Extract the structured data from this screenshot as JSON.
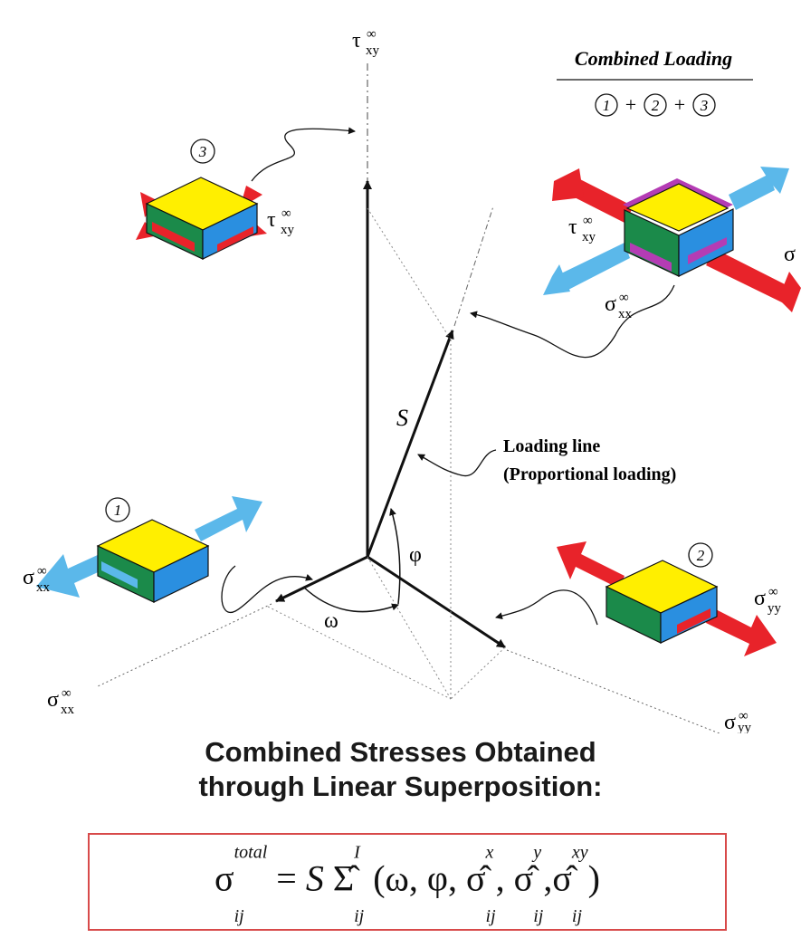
{
  "combined_title": "Combined Loading",
  "combined_sum": {
    "n1": "1",
    "plus1": "+",
    "n2": "2",
    "plus2": "+",
    "n3": "3"
  },
  "axis_labels": {
    "tau_top": "τ",
    "sigma_xx_bottom": "σ",
    "sigma_yy_bottom": "σ",
    "sub_xy": "xy",
    "sub_xx": "xx",
    "sub_yy": "yy",
    "sup_inf": "∞"
  },
  "angles": {
    "omega": "ω",
    "phi": "φ"
  },
  "vector_label": "S",
  "loading_line": {
    "line1": "Loading line",
    "line2": "(Proportional loading)"
  },
  "cubes": {
    "c1_number": "1",
    "c2_number": "2",
    "c3_number": "3",
    "c1_label": "σ",
    "c2_label": "σ",
    "c3_label": "τ",
    "combined_tau": "τ",
    "combined_sigma_xx": "σ",
    "combined_sigma_edge": "σ"
  },
  "heading": {
    "line1": "Combined Stresses Obtained",
    "line2": "through Linear Superposition:"
  },
  "formula": {
    "sigma": "σ",
    "sub_ij": "ij",
    "sup_total": "total",
    "equals": "=",
    "S": "S",
    "sigma_hat_cap": "Σ̂",
    "sup_I": "I",
    "open": "(ω, φ,",
    "sigma_hat": "σ̂",
    "sup_x": "x",
    "sup_y": "y",
    "sup_xy": "xy",
    "comma": ",",
    "close": ")"
  },
  "colors": {
    "cube_top": "#ffef00",
    "cube_front": "#1b8a4a",
    "cube_side": "#2a8fe0",
    "arrow_blue": "#5bb8ea",
    "arrow_red": "#e8232a",
    "shear_magenta": "#b43cb4",
    "formula_border": "#d84a4a"
  }
}
